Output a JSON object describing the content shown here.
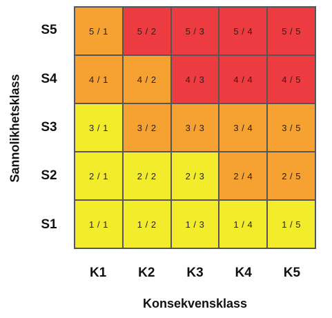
{
  "axes": {
    "y_title": "Sannolikhetsklass",
    "x_title": "Konsekvensklass"
  },
  "rows": [
    "S5",
    "S4",
    "S3",
    "S2",
    "S1"
  ],
  "columns": [
    "K1",
    "K2",
    "K3",
    "K4",
    "K5"
  ],
  "colors": {
    "yellow": "#f2ec2c",
    "orange": "#f5a233",
    "red": "#ec3c42"
  },
  "cells": [
    [
      {
        "label": "5 / 1",
        "color": "orange"
      },
      {
        "label": "5 / 2",
        "color": "red"
      },
      {
        "label": "5 / 3",
        "color": "red"
      },
      {
        "label": "5 / 4",
        "color": "red"
      },
      {
        "label": "5 / 5",
        "color": "red"
      }
    ],
    [
      {
        "label": "4 / 1",
        "color": "orange"
      },
      {
        "label": "4 / 2",
        "color": "orange"
      },
      {
        "label": "4 / 3",
        "color": "red"
      },
      {
        "label": "4 / 4",
        "color": "red"
      },
      {
        "label": "4 / 5",
        "color": "red"
      }
    ],
    [
      {
        "label": "3 / 1",
        "color": "yellow"
      },
      {
        "label": "3 / 2",
        "color": "orange"
      },
      {
        "label": "3 / 3",
        "color": "orange"
      },
      {
        "label": "3 / 4",
        "color": "orange"
      },
      {
        "label": "3 / 5",
        "color": "orange"
      }
    ],
    [
      {
        "label": "2 / 1",
        "color": "yellow"
      },
      {
        "label": "2 / 2",
        "color": "yellow"
      },
      {
        "label": "2 / 3",
        "color": "yellow"
      },
      {
        "label": "2 / 4",
        "color": "orange"
      },
      {
        "label": "2 / 5",
        "color": "orange"
      }
    ],
    [
      {
        "label": "1 / 1",
        "color": "yellow"
      },
      {
        "label": "1 / 2",
        "color": "yellow"
      },
      {
        "label": "1 / 3",
        "color": "yellow"
      },
      {
        "label": "1 / 4",
        "color": "yellow"
      },
      {
        "label": "1 / 5",
        "color": "yellow"
      }
    ]
  ]
}
